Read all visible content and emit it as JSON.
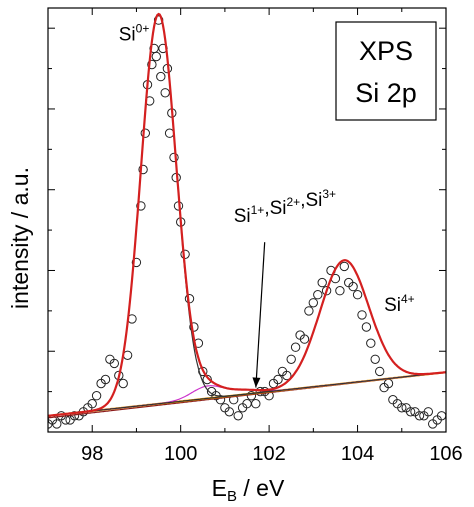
{
  "chart_data": {
    "type": "scatter",
    "xlabel_main": "E",
    "xlabel_sub": "B",
    "xlabel_unit": " / eV",
    "ylabel": "intensity / a.u.",
    "xlim": [
      97,
      106
    ],
    "ylim": [
      0,
      1.05
    ],
    "x_ticks": [
      98,
      100,
      102,
      104,
      106
    ],
    "x_tick_labels": [
      "98",
      "100",
      "102",
      "104",
      "106"
    ],
    "legend_box": {
      "line1": "XPS",
      "line2": "Si 2p"
    },
    "annotations": [
      {
        "id": "si0",
        "base": "Si",
        "sup": "0+",
        "x": 98.6,
        "y": 0.97
      },
      {
        "id": "si123",
        "parts": [
          {
            "base": "Si",
            "sup": "1+"
          },
          {
            "base": ",Si",
            "sup": "2+"
          },
          {
            "base": ",Si",
            "sup": "3+"
          }
        ],
        "x": 101.2,
        "y": 0.52
      },
      {
        "id": "si4",
        "base": "Si",
        "sup": "4+",
        "x": 104.6,
        "y": 0.3
      }
    ],
    "arrow": {
      "from": [
        101.9,
        0.47
      ],
      "to": [
        101.7,
        0.11
      ]
    },
    "series": [
      {
        "id": "measured",
        "marker": "open-circle",
        "x": [
          97.0,
          97.1,
          97.2,
          97.3,
          97.4,
          97.5,
          97.6,
          97.7,
          97.8,
          97.9,
          98.0,
          98.1,
          98.2,
          98.3,
          98.4,
          98.5,
          98.6,
          98.7,
          98.8,
          98.9,
          99.0,
          99.1,
          99.15,
          99.2,
          99.25,
          99.3,
          99.35,
          99.4,
          99.45,
          99.5,
          99.55,
          99.6,
          99.65,
          99.7,
          99.75,
          99.8,
          99.85,
          99.9,
          99.95,
          100.0,
          100.1,
          100.2,
          100.3,
          100.4,
          100.5,
          100.6,
          100.7,
          100.8,
          100.9,
          101.0,
          101.1,
          101.2,
          101.3,
          101.4,
          101.5,
          101.6,
          101.7,
          101.8,
          101.9,
          102.0,
          102.1,
          102.2,
          102.3,
          102.4,
          102.5,
          102.6,
          102.7,
          102.8,
          102.9,
          103.0,
          103.1,
          103.2,
          103.3,
          103.4,
          103.5,
          103.6,
          103.7,
          103.8,
          103.9,
          104.0,
          104.1,
          104.2,
          104.3,
          104.4,
          104.5,
          104.6,
          104.7,
          104.8,
          104.9,
          105.0,
          105.1,
          105.2,
          105.3,
          105.4,
          105.5,
          105.6,
          105.7,
          105.8,
          105.9
        ],
        "y": [
          0.02,
          0.03,
          0.02,
          0.04,
          0.03,
          0.03,
          0.04,
          0.04,
          0.05,
          0.06,
          0.07,
          0.09,
          0.12,
          0.13,
          0.18,
          0.17,
          0.14,
          0.12,
          0.19,
          0.28,
          0.42,
          0.56,
          0.65,
          0.74,
          0.86,
          0.82,
          0.91,
          0.95,
          0.93,
          1.02,
          0.88,
          0.95,
          0.84,
          0.9,
          0.74,
          0.79,
          0.68,
          0.63,
          0.56,
          0.52,
          0.44,
          0.33,
          0.26,
          0.22,
          0.15,
          0.13,
          0.1,
          0.09,
          0.08,
          0.06,
          0.05,
          0.08,
          0.04,
          0.06,
          0.07,
          0.09,
          0.07,
          0.1,
          0.1,
          0.09,
          0.12,
          0.13,
          0.15,
          0.14,
          0.18,
          0.21,
          0.24,
          0.23,
          0.3,
          0.32,
          0.34,
          0.37,
          0.35,
          0.4,
          0.38,
          0.35,
          0.41,
          0.37,
          0.36,
          0.34,
          0.29,
          0.26,
          0.22,
          0.18,
          0.15,
          0.11,
          0.12,
          0.08,
          0.07,
          0.06,
          0.06,
          0.05,
          0.05,
          0.04,
          0.04,
          0.05,
          0.02,
          0.03,
          0.04
        ]
      },
      {
        "id": "total-fit",
        "color": "#d42020",
        "width": 2.2
      },
      {
        "id": "si0-fit",
        "color": "#333333",
        "width": 1.2
      },
      {
        "id": "si4-fit",
        "color": "#333333",
        "width": 1.2
      },
      {
        "id": "intermediate-fit",
        "color": "#cc33cc",
        "width": 1.2
      },
      {
        "id": "background",
        "color": "#f0a000",
        "width": 2.0
      },
      {
        "id": "baseline",
        "color": "#8b1a1a",
        "width": 1.2
      }
    ]
  }
}
